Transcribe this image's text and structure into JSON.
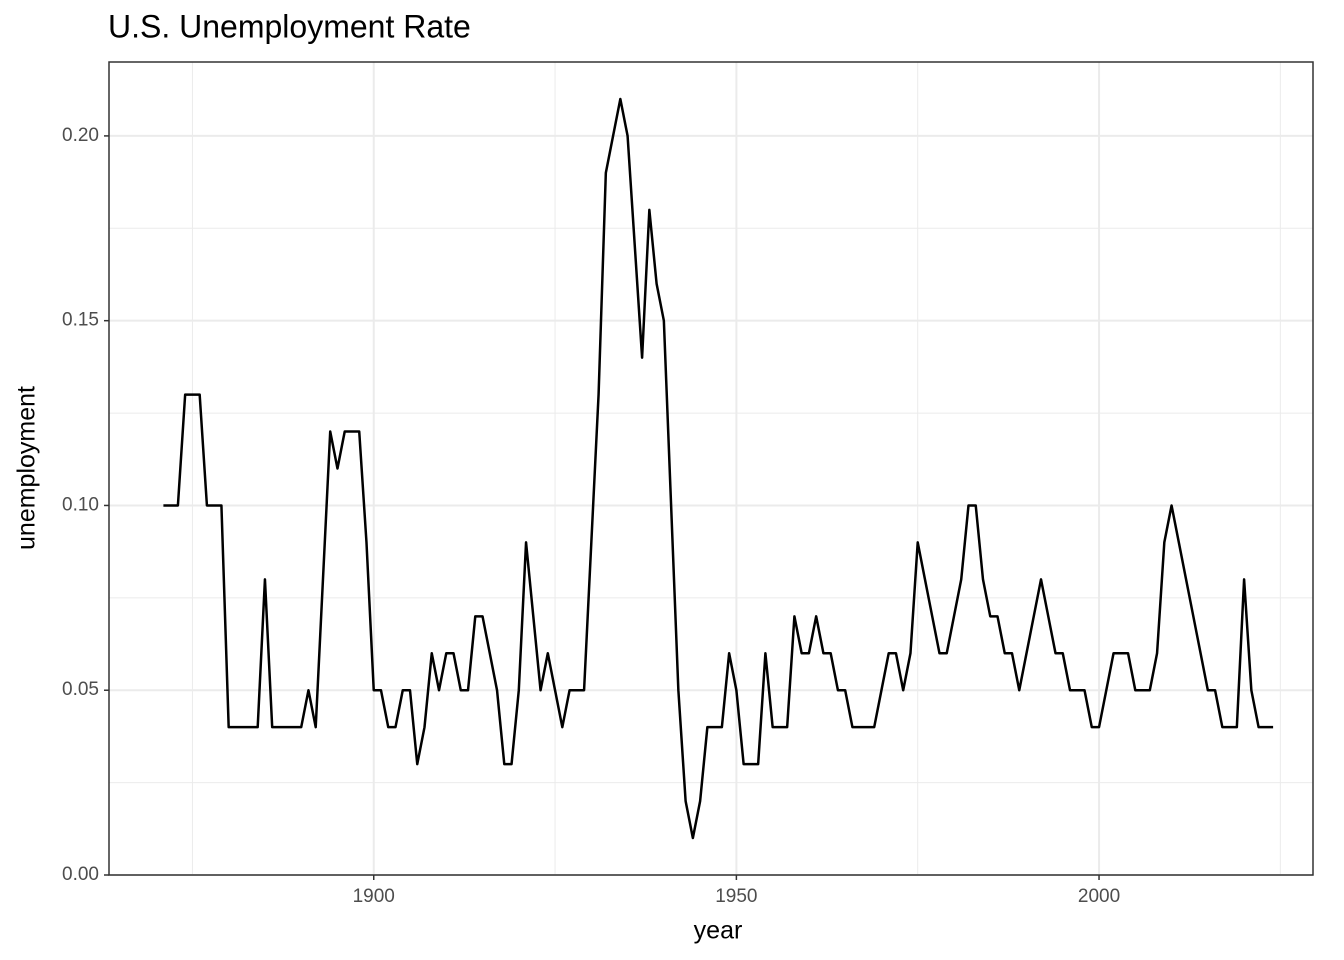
{
  "chart_data": {
    "type": "line",
    "title": "U.S. Unemployment Rate",
    "x_label": "year",
    "y_label": "unemployment",
    "x": [
      1871,
      1872,
      1873,
      1874,
      1875,
      1876,
      1877,
      1878,
      1879,
      1880,
      1881,
      1882,
      1883,
      1884,
      1885,
      1886,
      1887,
      1888,
      1889,
      1890,
      1891,
      1892,
      1893,
      1894,
      1895,
      1896,
      1897,
      1898,
      1899,
      1900,
      1901,
      1902,
      1903,
      1904,
      1905,
      1906,
      1907,
      1908,
      1909,
      1910,
      1911,
      1912,
      1913,
      1914,
      1915,
      1916,
      1917,
      1918,
      1919,
      1920,
      1921,
      1922,
      1923,
      1924,
      1925,
      1926,
      1927,
      1928,
      1929,
      1930,
      1931,
      1932,
      1933,
      1934,
      1935,
      1936,
      1937,
      1938,
      1939,
      1940,
      1941,
      1942,
      1943,
      1944,
      1945,
      1946,
      1947,
      1948,
      1949,
      1950,
      1951,
      1952,
      1953,
      1954,
      1955,
      1956,
      1957,
      1958,
      1959,
      1960,
      1961,
      1962,
      1963,
      1964,
      1965,
      1966,
      1967,
      1968,
      1969,
      1970,
      1971,
      1972,
      1973,
      1974,
      1975,
      1976,
      1977,
      1978,
      1979,
      1980,
      1981,
      1982,
      1983,
      1984,
      1985,
      1986,
      1987,
      1988,
      1989,
      1990,
      1991,
      1992,
      1993,
      1994,
      1995,
      1996,
      1997,
      1998,
      1999,
      2000,
      2001,
      2002,
      2003,
      2004,
      2005,
      2006,
      2007,
      2008,
      2009,
      2010,
      2011,
      2012,
      2013,
      2014,
      2015,
      2016,
      2017,
      2018,
      2019,
      2020,
      2021,
      2022,
      2023,
      2024
    ],
    "series": [
      {
        "name": "unemployment",
        "color": "#000000",
        "values": [
          0.1,
          0.1,
          0.1,
          0.13,
          0.13,
          0.13,
          0.1,
          0.1,
          0.1,
          0.04,
          0.04,
          0.04,
          0.04,
          0.04,
          0.08,
          0.04,
          0.04,
          0.04,
          0.04,
          0.04,
          0.05,
          0.04,
          0.08,
          0.12,
          0.11,
          0.12,
          0.12,
          0.12,
          0.09,
          0.05,
          0.05,
          0.04,
          0.04,
          0.05,
          0.05,
          0.03,
          0.04,
          0.06,
          0.05,
          0.06,
          0.06,
          0.05,
          0.05,
          0.07,
          0.07,
          0.06,
          0.05,
          0.03,
          0.03,
          0.05,
          0.09,
          0.07,
          0.05,
          0.06,
          0.05,
          0.04,
          0.05,
          0.05,
          0.05,
          0.09,
          0.13,
          0.19,
          0.2,
          0.21,
          0.2,
          0.17,
          0.14,
          0.18,
          0.16,
          0.15,
          0.1,
          0.05,
          0.02,
          0.01,
          0.02,
          0.04,
          0.04,
          0.04,
          0.06,
          0.05,
          0.03,
          0.03,
          0.03,
          0.06,
          0.04,
          0.04,
          0.04,
          0.07,
          0.06,
          0.06,
          0.07,
          0.06,
          0.06,
          0.05,
          0.05,
          0.04,
          0.04,
          0.04,
          0.04,
          0.05,
          0.06,
          0.06,
          0.05,
          0.06,
          0.09,
          0.08,
          0.07,
          0.06,
          0.06,
          0.07,
          0.08,
          0.1,
          0.1,
          0.08,
          0.07,
          0.07,
          0.06,
          0.06,
          0.05,
          0.06,
          0.07,
          0.08,
          0.07,
          0.06,
          0.06,
          0.05,
          0.05,
          0.05,
          0.04,
          0.04,
          0.05,
          0.06,
          0.06,
          0.06,
          0.05,
          0.05,
          0.05,
          0.06,
          0.09,
          0.1,
          0.09,
          0.08,
          0.07,
          0.06,
          0.05,
          0.05,
          0.04,
          0.04,
          0.04,
          0.08,
          0.05,
          0.04,
          0.04,
          0.04
        ]
      }
    ],
    "xlim": [
      1863.5,
      2029.5
    ],
    "ylim": [
      0,
      0.22
    ],
    "xticks": [
      1900,
      1950,
      2000
    ],
    "yticks": [
      {
        "value": 0,
        "label": "0.00"
      },
      {
        "value": 0.05,
        "label": "0.05"
      },
      {
        "value": 0.1,
        "label": "0.10"
      },
      {
        "value": 0.15,
        "label": "0.15"
      },
      {
        "value": 0.2,
        "label": "0.20"
      }
    ],
    "grid": true
  }
}
